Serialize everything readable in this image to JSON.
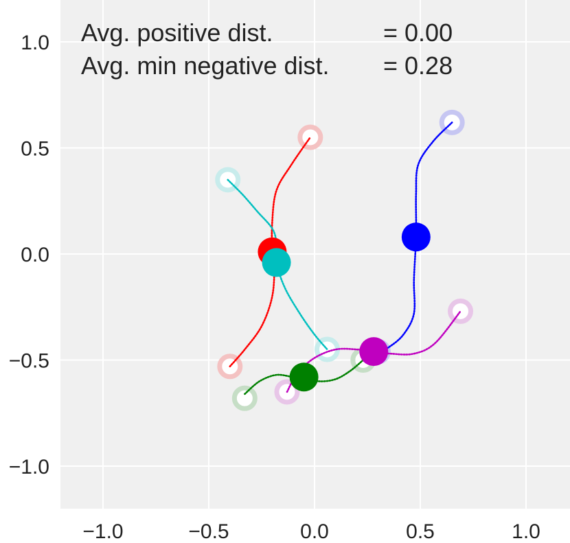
{
  "chart_data": {
    "type": "scatter",
    "title": "",
    "xlabel": "",
    "ylabel": "",
    "xlim": [
      -1.2,
      1.2
    ],
    "ylim": [
      -1.2,
      1.2
    ],
    "grid": true,
    "x_ticks": [
      -1.0,
      -0.5,
      0.0,
      0.5,
      1.0
    ],
    "y_ticks": [
      1.0,
      0.5,
      0.0,
      -0.5,
      -1.0
    ],
    "x_tick_labels": [
      "−1.0",
      "−0.5",
      "0.0",
      "0.5",
      "1.0"
    ],
    "y_tick_labels": [
      "1.0",
      "0.5",
      "0.0",
      "−0.5",
      "−1.0"
    ],
    "annotations": [
      {
        "label": "Avg. positive dist.",
        "value": "= 0.00"
      },
      {
        "label": "Avg. min negative dist.",
        "value": "= 0.28"
      }
    ],
    "series": [
      {
        "name": "red",
        "color": "#ff0000",
        "ring_color": "#f4c2c2",
        "path": [
          [
            -0.4,
            -0.53
          ],
          [
            -0.33,
            -0.45
          ],
          [
            -0.25,
            -0.34
          ],
          [
            -0.2,
            -0.2
          ],
          [
            -0.19,
            -0.05
          ],
          [
            -0.2,
            0.01
          ],
          [
            -0.2,
            0.15
          ],
          [
            -0.18,
            0.3
          ],
          [
            -0.11,
            0.42
          ],
          [
            -0.02,
            0.55
          ]
        ],
        "rings": [
          [
            -0.02,
            0.55
          ],
          [
            -0.4,
            -0.53
          ]
        ],
        "marker": [
          -0.2,
          0.01
        ]
      },
      {
        "name": "cyan",
        "color": "#00bfbf",
        "ring_color": "#c8ecec",
        "path": [
          [
            -0.41,
            0.35
          ],
          [
            -0.34,
            0.28
          ],
          [
            -0.27,
            0.2
          ],
          [
            -0.2,
            0.12
          ],
          [
            -0.18,
            0.05
          ],
          [
            -0.18,
            -0.04
          ],
          [
            -0.14,
            -0.16
          ],
          [
            -0.07,
            -0.28
          ],
          [
            0.0,
            -0.38
          ],
          [
            0.06,
            -0.45
          ]
        ],
        "rings": [
          [
            -0.41,
            0.35
          ],
          [
            0.06,
            -0.45
          ]
        ],
        "marker": [
          -0.18,
          -0.04
        ]
      },
      {
        "name": "blue",
        "color": "#0000ff",
        "ring_color": "#c6c6f2",
        "path": [
          [
            0.65,
            0.62
          ],
          [
            0.56,
            0.53
          ],
          [
            0.49,
            0.42
          ],
          [
            0.48,
            0.28
          ],
          [
            0.48,
            0.08
          ],
          [
            0.47,
            -0.12
          ],
          [
            0.47,
            -0.28
          ],
          [
            0.42,
            -0.38
          ],
          [
            0.35,
            -0.44
          ],
          [
            0.3,
            -0.46
          ]
        ],
        "rings": [
          [
            0.65,
            0.62
          ],
          [
            0.3,
            -0.46
          ]
        ],
        "marker": [
          0.48,
          0.08
        ]
      },
      {
        "name": "magenta",
        "color": "#bf00bf",
        "ring_color": "#e8c6e8",
        "path": [
          [
            -0.13,
            -0.65
          ],
          [
            -0.08,
            -0.56
          ],
          [
            0.0,
            -0.49
          ],
          [
            0.1,
            -0.45
          ],
          [
            0.2,
            -0.45
          ],
          [
            0.28,
            -0.46
          ],
          [
            0.36,
            -0.47
          ],
          [
            0.47,
            -0.47
          ],
          [
            0.57,
            -0.42
          ],
          [
            0.69,
            -0.27
          ]
        ],
        "rings": [
          [
            0.69,
            -0.27
          ],
          [
            -0.13,
            -0.65
          ]
        ],
        "marker": [
          0.28,
          -0.46
        ]
      },
      {
        "name": "green",
        "color": "#008000",
        "ring_color": "#c6dec6",
        "path": [
          [
            -0.33,
            -0.66
          ],
          [
            -0.26,
            -0.6
          ],
          [
            -0.18,
            -0.57
          ],
          [
            -0.1,
            -0.58
          ],
          [
            -0.05,
            -0.58
          ],
          [
            0.02,
            -0.6
          ],
          [
            0.1,
            -0.59
          ],
          [
            0.17,
            -0.55
          ],
          [
            0.23,
            -0.5
          ]
        ],
        "rings": [
          [
            -0.33,
            -0.68
          ],
          [
            0.23,
            -0.5
          ]
        ],
        "marker": [
          -0.05,
          -0.58
        ]
      }
    ]
  }
}
